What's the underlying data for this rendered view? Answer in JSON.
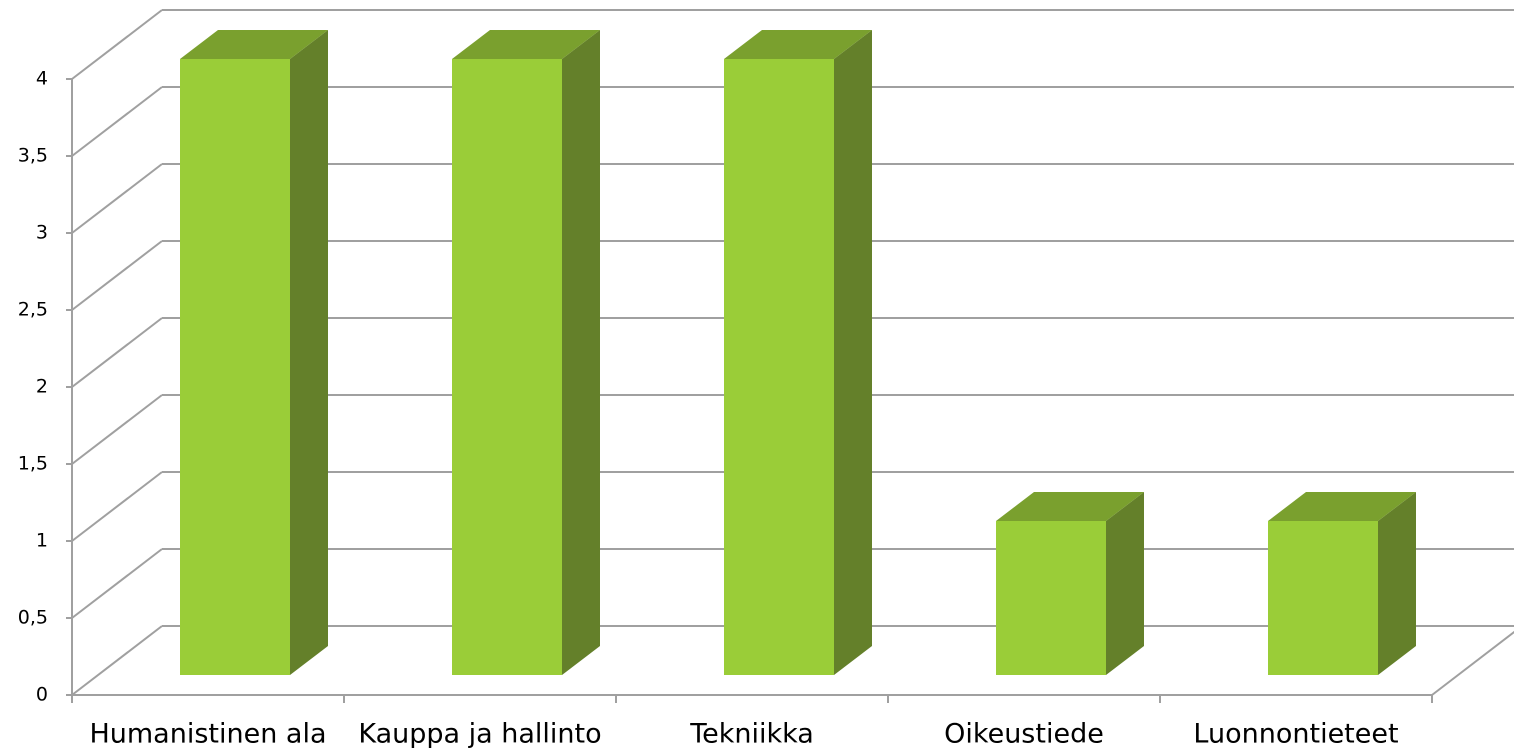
{
  "chart_data": {
    "type": "bar3d",
    "categories": [
      "Humanistinen ala",
      "Kauppa ja hallinto",
      "Tekniikka",
      "Oikeustiede",
      "Luonnontieteet"
    ],
    "values": [
      4,
      4,
      4,
      1,
      1
    ],
    "color": "#9acd38",
    "ylim": [
      0,
      4
    ],
    "yticks": [
      0,
      {
        "value": 0.5,
        "label": "0,5"
      },
      1,
      {
        "value": 1.5,
        "label": "1,5"
      },
      2,
      {
        "value": 2.5,
        "label": "2,5"
      },
      3,
      {
        "value": 3.5,
        "label": "3,5"
      },
      4
    ],
    "grid": true
  }
}
